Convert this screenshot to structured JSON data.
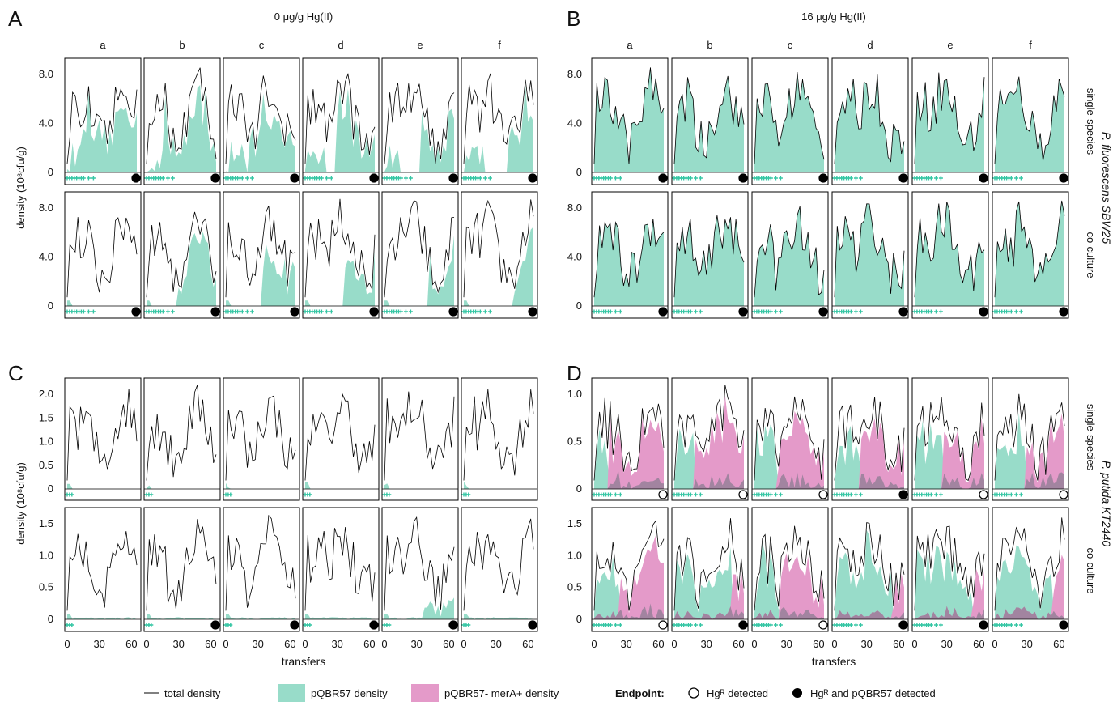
{
  "panels": [
    {
      "letter": "A",
      "title": "0 μg/g Hg(II)"
    },
    {
      "letter": "B",
      "title": "16 μg/g Hg(II)"
    },
    {
      "letter": "C",
      "title": ""
    },
    {
      "letter": "D",
      "title": ""
    }
  ],
  "replicates": [
    "a",
    "b",
    "c",
    "d",
    "e",
    "f"
  ],
  "row_labels": [
    "single-species",
    "co-culture",
    "single-species",
    "co-culture"
  ],
  "species_labels": [
    "P. fluorescens SBW25",
    "P. putida KT2440"
  ],
  "ylabel": "density (10⁸cfu/g)",
  "xlabel": "transfers",
  "x_ticks": [
    "0",
    "30",
    "60"
  ],
  "y_ticks_top": [
    "0",
    "4.0",
    "8.0"
  ],
  "y_ticks_c_top": [
    "0",
    "0.5",
    "1.0",
    "1.5",
    "2.0"
  ],
  "y_ticks_c_bottom": [
    "0",
    "0.5",
    "1.0",
    "1.5"
  ],
  "y_ticks_d_top": [
    "0",
    "0.5",
    "1.0"
  ],
  "y_ticks_d_bottom": [
    "0",
    "0.5",
    "1.0",
    "1.5"
  ],
  "legend": {
    "total": "total density",
    "pqbr": "pQBR57 density",
    "mera": "pQBR57- merA+ density",
    "endpoint_title": "Endpoint:",
    "open": "Hgᴿ detected",
    "filled": "Hgᴿ and pQBR57 detected"
  },
  "colors": {
    "pqbr": "#98dcc9",
    "mera": "#e49ac9",
    "overlap": "#a284a0",
    "line": "#000000",
    "cross": "#35c6a4"
  },
  "chart_data": {
    "type": "area",
    "x_range": [
      0,
      65
    ],
    "endpoints": {
      "A_top": [
        "filled",
        "filled",
        "filled",
        "filled",
        "filled",
        "filled"
      ],
      "A_bottom": [
        "filled",
        "filled",
        "filled",
        "filled",
        "filled",
        "filled"
      ],
      "B_top": [
        "filled",
        "filled",
        "filled",
        "filled",
        "filled",
        "filled"
      ],
      "B_bottom": [
        "filled",
        "filled",
        "filled",
        "filled",
        "filled",
        "filled"
      ],
      "C_top": [
        "",
        "",
        "",
        "",
        "",
        ""
      ],
      "C_bottom": [
        "",
        "filled",
        "filled",
        "filled",
        "filled",
        "filled"
      ],
      "D_top": [
        "open",
        "open",
        "open",
        "filled",
        "open",
        "open"
      ],
      "D_bottom": [
        "open",
        "filled",
        "open",
        "filled",
        "filled",
        "filled"
      ]
    }
  }
}
